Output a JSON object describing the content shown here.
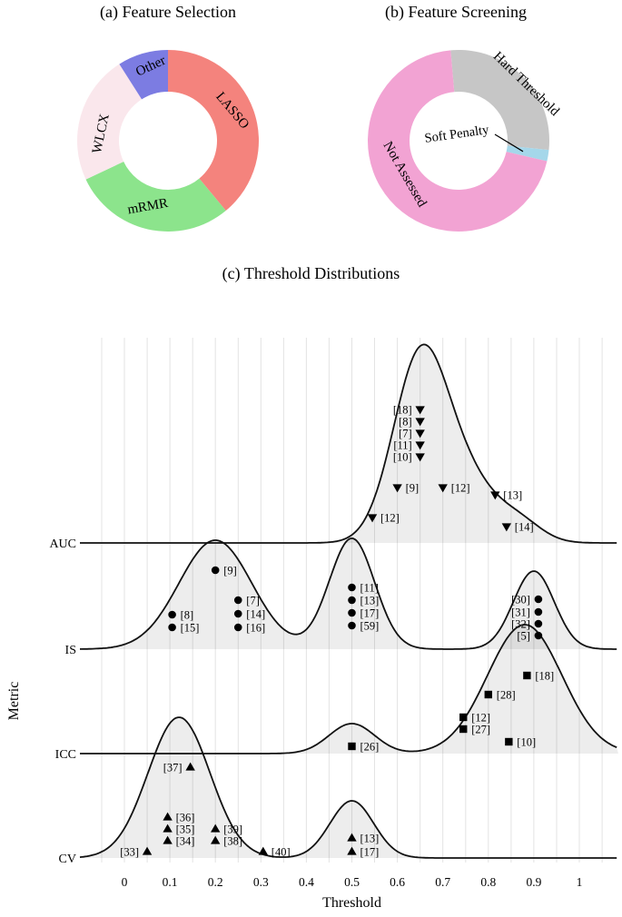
{
  "figure": {
    "panel_a_title": "(a) Feature Selection",
    "panel_b_title": "(b) Feature Screening",
    "panel_c_title": "(c) Threshold Distributions"
  },
  "chart_data": [
    {
      "id": "feature-selection",
      "type": "pie",
      "donut": true,
      "title": "(a) Feature Selection",
      "start_angle": 0,
      "slices": [
        {
          "label": "LASSO",
          "value": 39,
          "color": "#f4837d",
          "label_angle": 65,
          "label_radius": 78,
          "label_rotation": 50
        },
        {
          "label": "mRMR",
          "value": 29,
          "color": "#8ce48c",
          "label_angle": 197,
          "label_radius": 76,
          "label_rotation": -10
        },
        {
          "label": "WLCX",
          "value": 23,
          "color": "#fae7ec",
          "label_angle": 276,
          "label_radius": 74,
          "label_rotation": -78
        },
        {
          "label": "Other",
          "value": 9,
          "color": "#7c7ce2",
          "label_angle": 347,
          "label_radius": 84,
          "label_rotation": -25
        }
      ]
    },
    {
      "id": "feature-screening",
      "type": "pie",
      "donut": true,
      "title": "(b) Feature Screening",
      "start_angle": -5,
      "slices": [
        {
          "label": "Hard Threshold",
          "value": 28,
          "color": "#c6c6c6",
          "label_angle": 50,
          "label_radius": 97,
          "label_rotation": 44
        },
        {
          "label": "Soft Penalty",
          "value": 2,
          "color": "#a5d7ea",
          "label_in_center": true,
          "label_rotation": -8
        },
        {
          "label": "Not Assessed",
          "value": 70,
          "color": "#f2a3d3",
          "label_angle": 238,
          "label_radius": 70,
          "label_rotation": 60
        }
      ]
    },
    {
      "id": "threshold-distributions",
      "type": "area",
      "title": "(c) Threshold Distributions",
      "xlabel": "Threshold",
      "ylabel": "Metric",
      "x_ticks": [
        "0",
        "0.1",
        "0.2",
        "0.3",
        "0.4",
        "0.5",
        "0.6",
        "0.7",
        "0.8",
        "0.9",
        "1"
      ],
      "x_range": [
        -0.1,
        1.08
      ],
      "grid": true,
      "rows": [
        {
          "metric": "AUC",
          "marker": "triangle-down",
          "density": [
            {
              "mu": 0.65,
              "sigma": 0.06,
              "amp": 200
            },
            {
              "mu": 0.755,
              "sigma": 0.065,
              "amp": 62
            },
            {
              "mu": 0.87,
              "sigma": 0.05,
              "amp": 20
            }
          ],
          "points": [
            {
              "x": 0.65,
              "dy": 147,
              "ref": "[18]",
              "side": "left"
            },
            {
              "x": 0.65,
              "dy": 134,
              "ref": "[8]",
              "side": "left"
            },
            {
              "x": 0.65,
              "dy": 121,
              "ref": "[7]",
              "side": "left"
            },
            {
              "x": 0.65,
              "dy": 108,
              "ref": "[11]",
              "side": "left"
            },
            {
              "x": 0.65,
              "dy": 95,
              "ref": "[10]",
              "side": "left"
            },
            {
              "x": 0.6,
              "dy": 61,
              "ref": "[9]",
              "side": "right"
            },
            {
              "x": 0.7,
              "dy": 61,
              "ref": "[12]",
              "side": "right"
            },
            {
              "x": 0.815,
              "dy": 53,
              "ref": "[13]",
              "side": "right"
            },
            {
              "x": 0.545,
              "dy": 28,
              "ref": "[12]",
              "side": "right"
            },
            {
              "x": 0.84,
              "dy": 18,
              "ref": "[14]",
              "side": "right"
            }
          ]
        },
        {
          "metric": "IS",
          "marker": "circle",
          "density": [
            {
              "mu": 0.2,
              "sigma": 0.08,
              "amp": 120
            },
            {
              "mu": 0.5,
              "sigma": 0.05,
              "amp": 122
            },
            {
              "mu": 0.9,
              "sigma": 0.045,
              "amp": 86
            }
          ],
          "points": [
            {
              "x": 0.2,
              "dy": 87,
              "ref": "[9]",
              "side": "right"
            },
            {
              "x": 0.105,
              "dy": 38,
              "ref": "[8]",
              "side": "right"
            },
            {
              "x": 0.105,
              "dy": 24,
              "ref": "[15]",
              "side": "right"
            },
            {
              "x": 0.25,
              "dy": 54,
              "ref": "[7]",
              "side": "right"
            },
            {
              "x": 0.25,
              "dy": 39,
              "ref": "[14]",
              "side": "right"
            },
            {
              "x": 0.25,
              "dy": 24,
              "ref": "[16]",
              "side": "right"
            },
            {
              "x": 0.5,
              "dy": 68,
              "ref": "[11]",
              "side": "right"
            },
            {
              "x": 0.5,
              "dy": 54,
              "ref": "[13]",
              "side": "right"
            },
            {
              "x": 0.5,
              "dy": 40,
              "ref": "[17]",
              "side": "right"
            },
            {
              "x": 0.5,
              "dy": 26,
              "ref": "[59]",
              "side": "right"
            },
            {
              "x": 0.91,
              "dy": 55,
              "ref": "[30]",
              "side": "left"
            },
            {
              "x": 0.91,
              "dy": 41,
              "ref": "[31]",
              "side": "left"
            },
            {
              "x": 0.91,
              "dy": 28,
              "ref": "[32]",
              "side": "left"
            },
            {
              "x": 0.91,
              "dy": 15,
              "ref": "[5]",
              "side": "left"
            }
          ]
        },
        {
          "metric": "ICC",
          "marker": "square",
          "density": [
            {
              "mu": 0.88,
              "sigma": 0.082,
              "amp": 142
            },
            {
              "mu": 0.5,
              "sigma": 0.05,
              "amp": 33
            }
          ],
          "points": [
            {
              "x": 0.885,
              "dy": 86,
              "ref": "[18]",
              "side": "right"
            },
            {
              "x": 0.8,
              "dy": 65,
              "ref": "[28]",
              "side": "right"
            },
            {
              "x": 0.745,
              "dy": 40,
              "ref": "[12]",
              "side": "right"
            },
            {
              "x": 0.745,
              "dy": 27,
              "ref": "[27]",
              "side": "right"
            },
            {
              "x": 0.5,
              "dy": 8,
              "ref": "[26]",
              "side": "right"
            },
            {
              "x": 0.845,
              "dy": 13,
              "ref": "[10]",
              "side": "right"
            }
          ]
        },
        {
          "metric": "CV",
          "marker": "triangle-up",
          "density": [
            {
              "mu": 0.12,
              "sigma": 0.068,
              "amp": 155
            },
            {
              "mu": 0.5,
              "sigma": 0.048,
              "amp": 63
            }
          ],
          "points": [
            {
              "x": 0.145,
              "dy": 100,
              "ref": "[37]",
              "side": "left"
            },
            {
              "x": 0.095,
              "dy": 45,
              "ref": "[36]",
              "side": "right"
            },
            {
              "x": 0.095,
              "dy": 32,
              "ref": "[35]",
              "side": "right"
            },
            {
              "x": 0.095,
              "dy": 19,
              "ref": "[34]",
              "side": "right"
            },
            {
              "x": 0.05,
              "dy": 7,
              "ref": "[33]",
              "side": "left"
            },
            {
              "x": 0.2,
              "dy": 32,
              "ref": "[39]",
              "side": "right"
            },
            {
              "x": 0.2,
              "dy": 19,
              "ref": "[38]",
              "side": "right"
            },
            {
              "x": 0.305,
              "dy": 7,
              "ref": "[40]",
              "side": "right"
            },
            {
              "x": 0.5,
              "dy": 22,
              "ref": "[13]",
              "side": "right"
            },
            {
              "x": 0.5,
              "dy": 7,
              "ref": "[17]",
              "side": "right"
            }
          ]
        }
      ]
    }
  ]
}
